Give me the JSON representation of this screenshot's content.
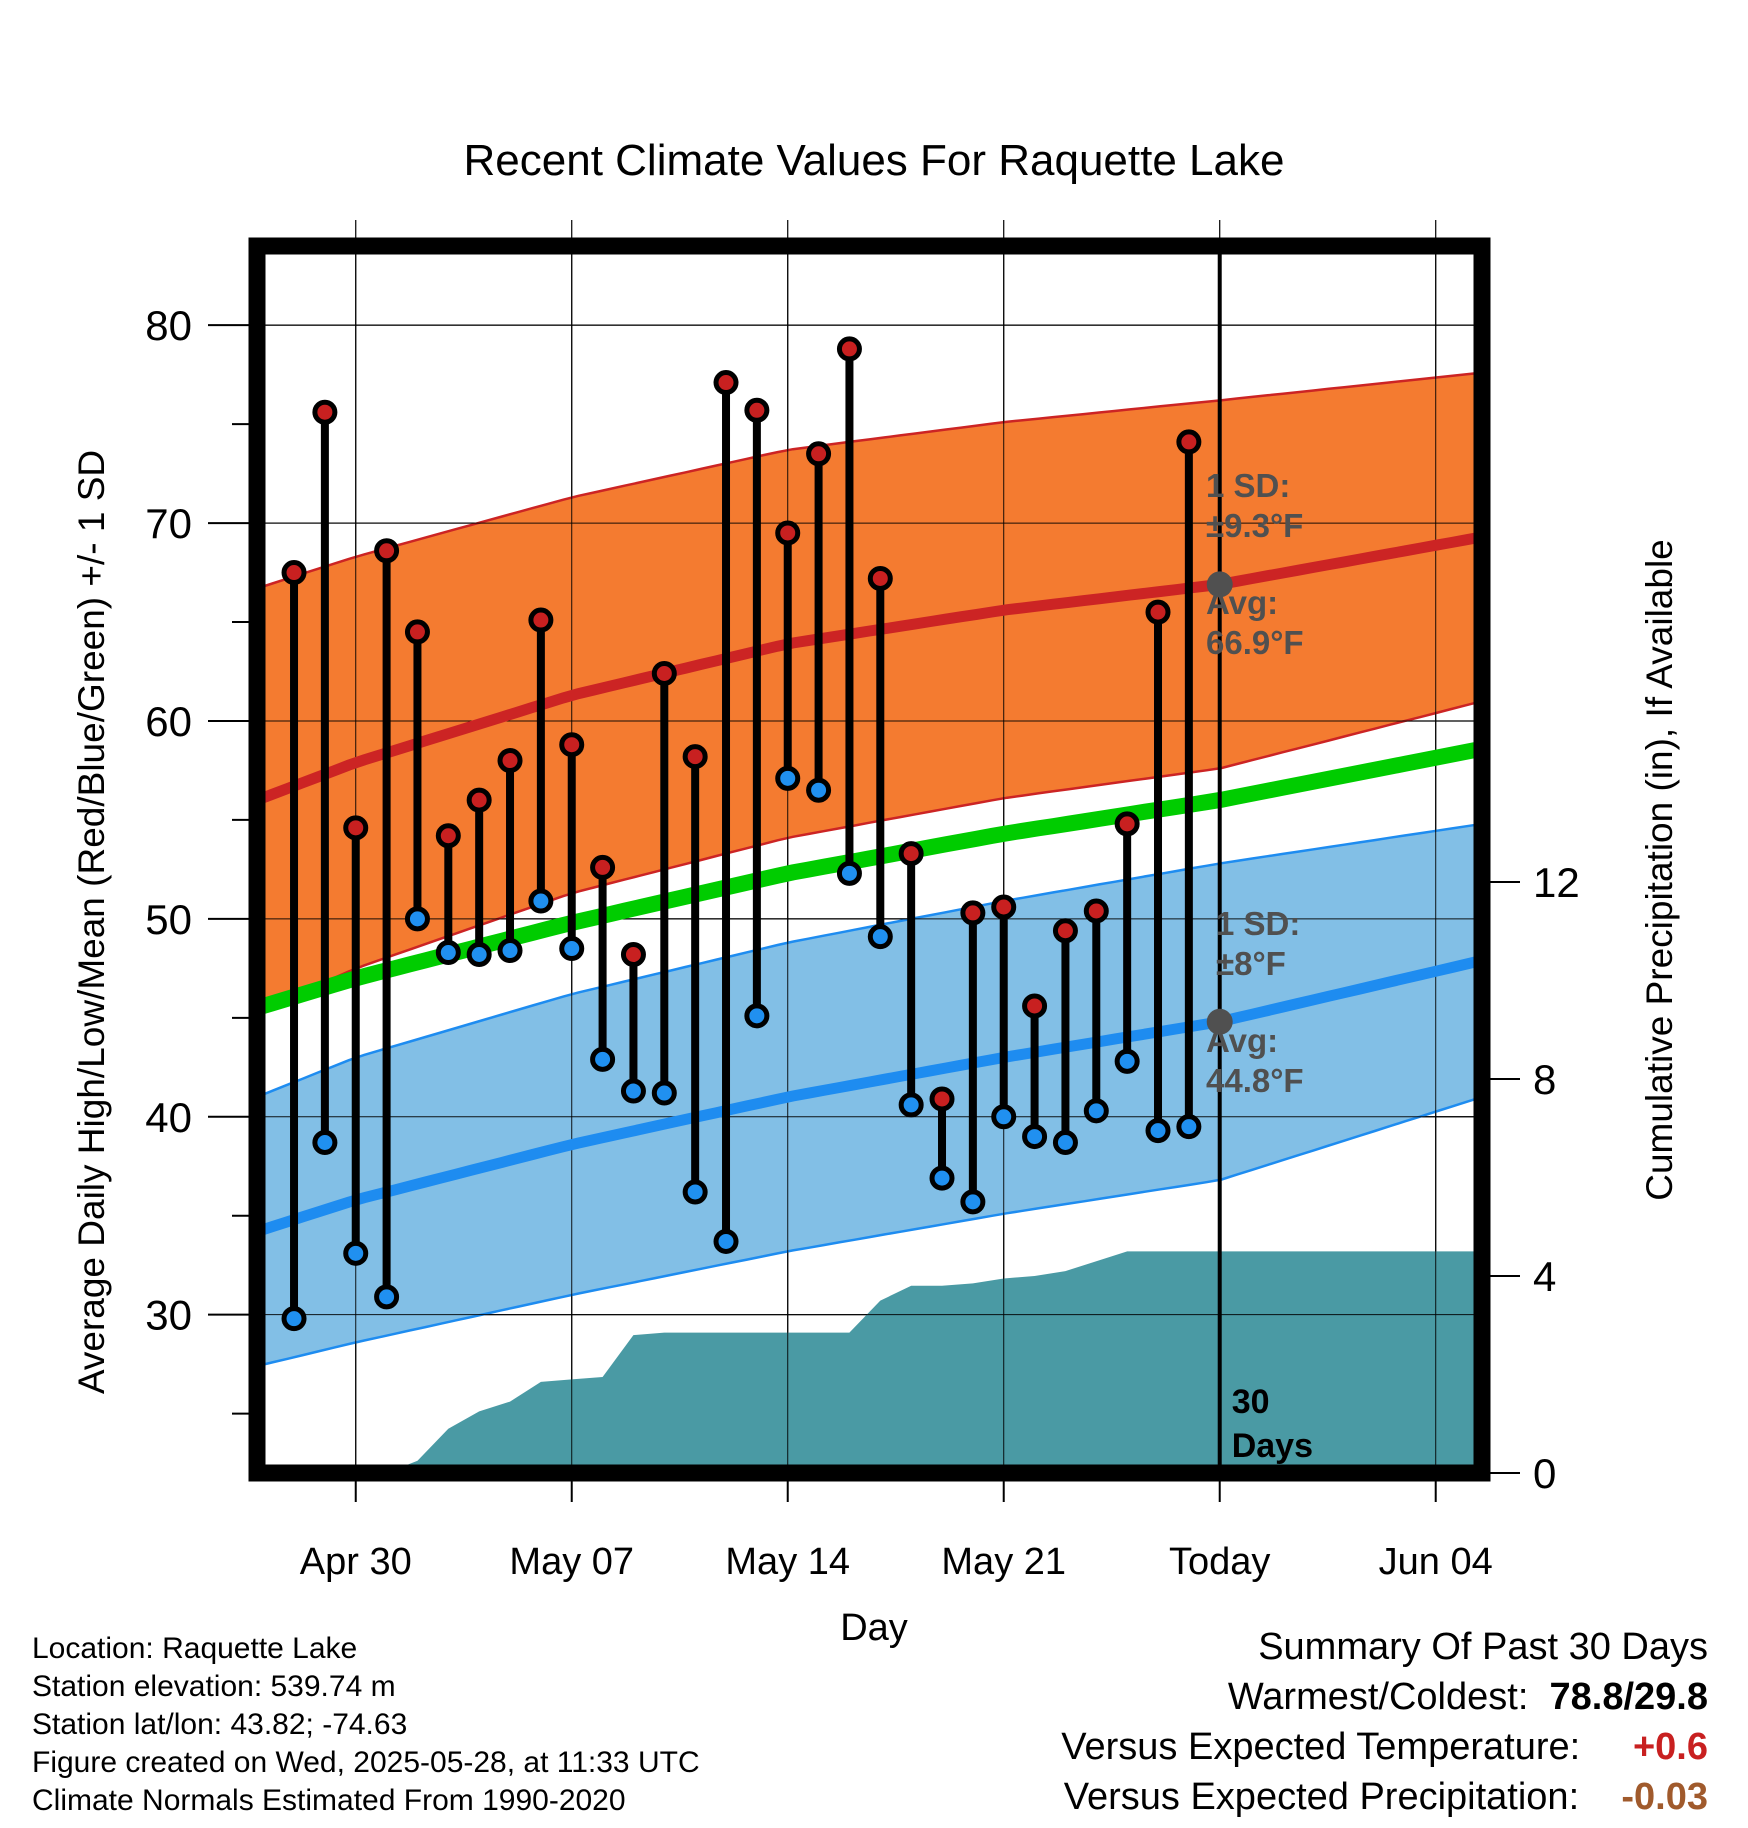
{
  "chart_data": {
    "type": "line",
    "title": "Recent Climate Values For Raquette Lake",
    "xlabel": "Day",
    "ylabel": "Average Daily High/Low/Mean (Red/Blue/Green) +/- 1 SD",
    "y2label": "Cumulative Precipitation (in), If Available",
    "xlim": [
      -3.2,
      36.5
    ],
    "ylim": [
      22,
      84
    ],
    "y2lim": [
      0,
      28
    ],
    "x_ticks": [
      {
        "x": 0,
        "label": "Apr 30"
      },
      {
        "x": 7,
        "label": "May 07"
      },
      {
        "x": 14,
        "label": "May 14"
      },
      {
        "x": 21,
        "label": "May 21"
      },
      {
        "x": 28,
        "label": "Today"
      },
      {
        "x": 35,
        "label": "Jun 04"
      }
    ],
    "y_ticks": [
      30,
      40,
      50,
      60,
      70,
      80
    ],
    "y2_ticks": [
      0,
      4,
      8,
      12
    ],
    "grid": true,
    "today_x": 28,
    "today_label": "30 Days",
    "normals": {
      "x": [
        -3.2,
        0,
        7,
        14,
        21,
        28,
        36.5
      ],
      "high_mean": [
        56.0,
        57.9,
        61.3,
        63.9,
        65.6,
        66.9,
        69.3
      ],
      "high_sd": [
        10.7,
        10.4,
        10.0,
        9.8,
        9.5,
        9.3,
        8.3
      ],
      "low_mean": [
        34.2,
        35.8,
        38.6,
        41.0,
        43.0,
        44.8,
        47.9
      ],
      "low_sd": [
        6.8,
        7.2,
        7.6,
        7.8,
        7.9,
        8.0,
        6.9
      ],
      "mean": [
        45.5,
        47.0,
        49.8,
        52.3,
        54.3,
        56.0,
        58.6
      ]
    },
    "series": [
      {
        "name": "High",
        "x": [
          -2,
          -1,
          0,
          1,
          2,
          3,
          4,
          5,
          6,
          7,
          8,
          9,
          10,
          11,
          12,
          13,
          14,
          15,
          16,
          17,
          18,
          19,
          20,
          21,
          22,
          23,
          24,
          25,
          26,
          27
        ],
        "values": [
          67.5,
          75.6,
          54.6,
          68.6,
          64.5,
          54.2,
          56.0,
          58.0,
          65.1,
          58.8,
          52.6,
          48.2,
          62.4,
          58.2,
          77.1,
          75.7,
          69.5,
          73.5,
          78.8,
          67.2,
          53.3,
          40.9,
          50.3,
          50.6,
          45.6,
          49.4,
          50.4,
          54.8,
          65.5,
          74.1
        ]
      },
      {
        "name": "Low",
        "x": [
          -2,
          -1,
          0,
          1,
          2,
          3,
          4,
          5,
          6,
          7,
          8,
          9,
          10,
          11,
          12,
          13,
          14,
          15,
          16,
          17,
          18,
          19,
          20,
          21,
          22,
          23,
          24,
          25,
          26,
          27
        ],
        "values": [
          29.8,
          38.7,
          33.1,
          30.9,
          50.0,
          48.3,
          48.2,
          48.4,
          50.9,
          48.5,
          42.9,
          41.3,
          41.2,
          36.2,
          33.7,
          45.1,
          57.1,
          56.5,
          52.3,
          49.1,
          40.6,
          36.9,
          35.7,
          40.0,
          39.0,
          38.7,
          40.3,
          42.8,
          39.3,
          39.5
        ]
      },
      {
        "name": "Precip",
        "x": [
          -3.2,
          0,
          1,
          2,
          3,
          4,
          5,
          6,
          7,
          8,
          9,
          10,
          11,
          12,
          13,
          14,
          15,
          16,
          17,
          18,
          19,
          20,
          21,
          22,
          23,
          24,
          25,
          26,
          27,
          28,
          36.5
        ],
        "values": [
          0,
          0,
          0,
          0.25,
          0.9,
          1.25,
          1.45,
          1.85,
          1.9,
          1.95,
          2.8,
          2.85,
          2.85,
          2.85,
          2.85,
          2.85,
          2.85,
          2.85,
          3.5,
          3.8,
          3.8,
          3.85,
          3.95,
          4.0,
          4.1,
          4.3,
          4.5,
          4.5,
          4.5,
          4.5,
          4.5
        ]
      }
    ],
    "annotations": {
      "high": {
        "line1": "1 SD:",
        "line2": "±9.3°F",
        "line3": "Avg:",
        "line4": "66.9°F"
      },
      "low": {
        "line1": "1 SD:",
        "line2": "±8°F",
        "line3": "Avg:",
        "line4": "44.8°F"
      }
    }
  },
  "info": {
    "location": "Location: Raquette Lake",
    "elevation": "Station elevation: 539.74 m",
    "latlon": "Station lat/lon: 43.82; -74.63",
    "created": "Figure created on Wed, 2025-05-28, at 11:33 UTC",
    "normals": "Climate Normals Estimated From 1990-2020"
  },
  "summary": {
    "title": "Summary Of Past 30 Days",
    "warm_cold_label": "Warmest/Coldest:",
    "warm_cold_value": "78.8/29.8",
    "temp_label": "Versus Expected Temperature:",
    "temp_value": "+0.6",
    "precip_label": "Versus Expected Precipitation:",
    "precip_value": "-0.03"
  },
  "colors": {
    "high_band": "#f47b30",
    "high_line": "#cc2424",
    "low_band": "#82bfe6",
    "low_line": "#1e8cf0",
    "mean_line": "#00cc00",
    "precip": "#4a9aa4",
    "high_dot": "#c82020",
    "low_dot": "#2090f0",
    "annotation": "#505050",
    "temp_value": "#c82020",
    "precip_value": "#a05a2c"
  }
}
